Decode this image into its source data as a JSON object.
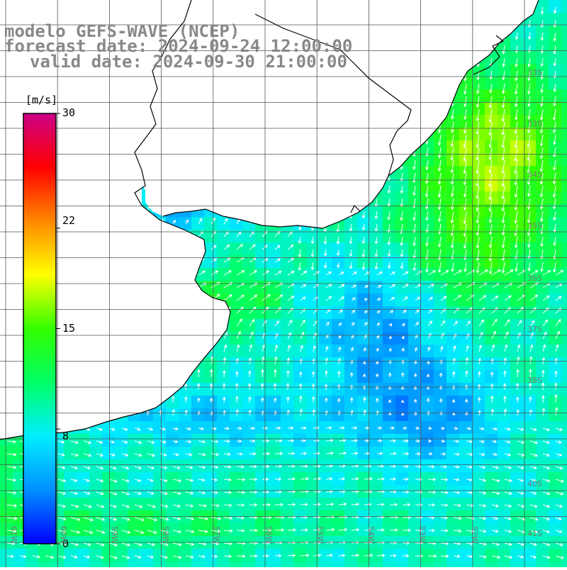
{
  "title": {
    "model": "modelo GEFS-WAVE (NCEP)",
    "forecast": "forecast date: 2024-09-24 12:00:00",
    "valid": "valid date: 2024-09-30 21:00:00"
  },
  "colorbar": {
    "unit": "[m/s]",
    "min": 0,
    "max": 30,
    "ticks": [
      "30",
      "22",
      "15",
      "8",
      "0"
    ],
    "tick_values": [
      30,
      22,
      15,
      8,
      0
    ],
    "colors": [
      "#0000ff",
      "#0090ff",
      "#00eeff",
      "#00ff66",
      "#33ff00",
      "#ffff00",
      "#ff8800",
      "#ff0000",
      "#cc0088"
    ]
  },
  "map": {
    "latitude_labels": [
      "33S",
      "34S",
      "35S",
      "36S",
      "37S",
      "38S",
      "40S",
      "41S"
    ],
    "longitude_labels": [
      "61W",
      "60W",
      "59W",
      "58W",
      "57W",
      "56W",
      "55W",
      "54W",
      "53W",
      "52W"
    ],
    "land_color": "#ffffff",
    "coast_color": "#000000",
    "grid_color": "#444444"
  }
}
